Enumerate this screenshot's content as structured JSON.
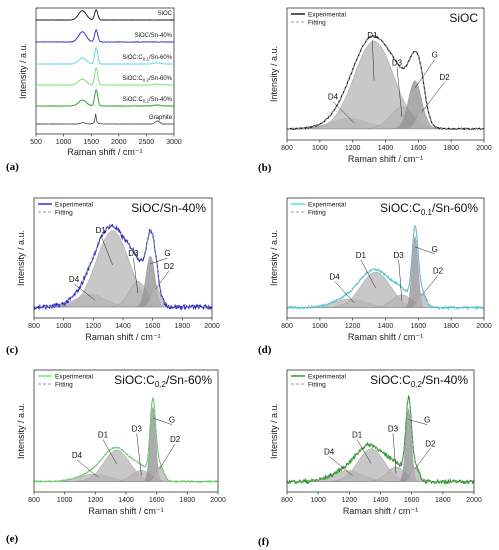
{
  "colors": {
    "black": "#111111",
    "blue": "#2323cc",
    "cyan": "#4fd8e6",
    "lightgreen": "#66e666",
    "green": "#1f9a1f",
    "fill": "#b5b5b5",
    "fill_dark": "#8f8f8f",
    "fitting": "#9a9a9a"
  },
  "chart_data": [
    {
      "id": "a",
      "panel_label": "(a)",
      "type": "line",
      "xlabel": "Raman shift / cm⁻¹",
      "ylabel": "Intensity / a.u.",
      "xlim": [
        500,
        3000
      ],
      "xticks": [
        500,
        1000,
        1500,
        2000,
        2500,
        3000
      ],
      "series": [
        {
          "name": "SiOC",
          "color": "#111111"
        },
        {
          "name": "SiOC/Sn-40%",
          "color": "#2323cc"
        },
        {
          "name": "SiOC:C0.1/Sn-60%",
          "color": "#4fd8e6"
        },
        {
          "name": "SiOC:C0.2/Sn-60%",
          "color": "#66e666"
        },
        {
          "name": "SiOC:C0.2/Sn-40%",
          "color": "#1f9a1f"
        },
        {
          "name": "Graphite",
          "color": "#555555"
        }
      ]
    },
    {
      "id": "b",
      "panel_label": "(b)",
      "title": "SiOC",
      "type": "line",
      "xlabel": "Raman shift / cm⁻¹",
      "ylabel": "Intensity / a.u.",
      "xlim": [
        800,
        2000
      ],
      "xticks": [
        800,
        1000,
        1200,
        1400,
        1600,
        1800,
        2000
      ],
      "legend": [
        "Experimental",
        "Fitting"
      ],
      "color": "#111111",
      "bands": [
        "D1",
        "D2",
        "D3",
        "D4",
        "G"
      ]
    },
    {
      "id": "c",
      "panel_label": "(c)",
      "title": "SiOC/Sn-40%",
      "type": "line",
      "xlabel": "Raman shift / cm⁻¹",
      "ylabel": "Intensity / a.u.",
      "xlim": [
        800,
        2000
      ],
      "xticks": [
        800,
        1000,
        1200,
        1400,
        1600,
        1800,
        2000
      ],
      "legend": [
        "Experimental",
        "Fitting"
      ],
      "color": "#2323cc",
      "bands": [
        "D1",
        "D2",
        "D3",
        "D4",
        "G"
      ]
    },
    {
      "id": "d",
      "panel_label": "(d)",
      "title": "SiOC:C",
      "title_sub": "0.1",
      "title_end": "/Sn-60%",
      "type": "line",
      "xlabel": "Raman shift / cm⁻¹",
      "ylabel": "Intensity / a.u.",
      "xlim": [
        800,
        2000
      ],
      "xticks": [
        800,
        1000,
        1200,
        1400,
        1600,
        1800,
        2000
      ],
      "legend": [
        "Experimental",
        "Fitting"
      ],
      "color": "#4fd8e6",
      "bands": [
        "D1",
        "D2",
        "D3",
        "D4",
        "G"
      ]
    },
    {
      "id": "e",
      "panel_label": "(e)",
      "title": "SiOC:C",
      "title_sub": "0.2",
      "title_end": "/Sn-60%",
      "type": "line",
      "xlabel": "Raman shift / cm⁻¹",
      "ylabel": "Intensity / a.u.",
      "xlim": [
        800,
        2000
      ],
      "xticks": [
        800,
        1000,
        1200,
        1400,
        1600,
        1800,
        2000
      ],
      "legend": [
        "Experimental",
        "Fitting"
      ],
      "color": "#66e666",
      "bands": [
        "D1",
        "D2",
        "D3",
        "D4",
        "G"
      ]
    },
    {
      "id": "f",
      "panel_label": "(f)",
      "title": "SiOC:C",
      "title_sub": "0.2",
      "title_end": "/Sn-40%",
      "type": "line",
      "xlabel": "Raman shift / cm⁻¹",
      "ylabel": "Intensity / a.u.",
      "xlim": [
        800,
        2000
      ],
      "xticks": [
        800,
        1000,
        1200,
        1400,
        1600,
        1800,
        2000
      ],
      "legend": [
        "Experimental",
        "Fitting"
      ],
      "color": "#1f9a1f",
      "bands": [
        "D1",
        "D2",
        "D3",
        "D4",
        "G"
      ]
    }
  ]
}
